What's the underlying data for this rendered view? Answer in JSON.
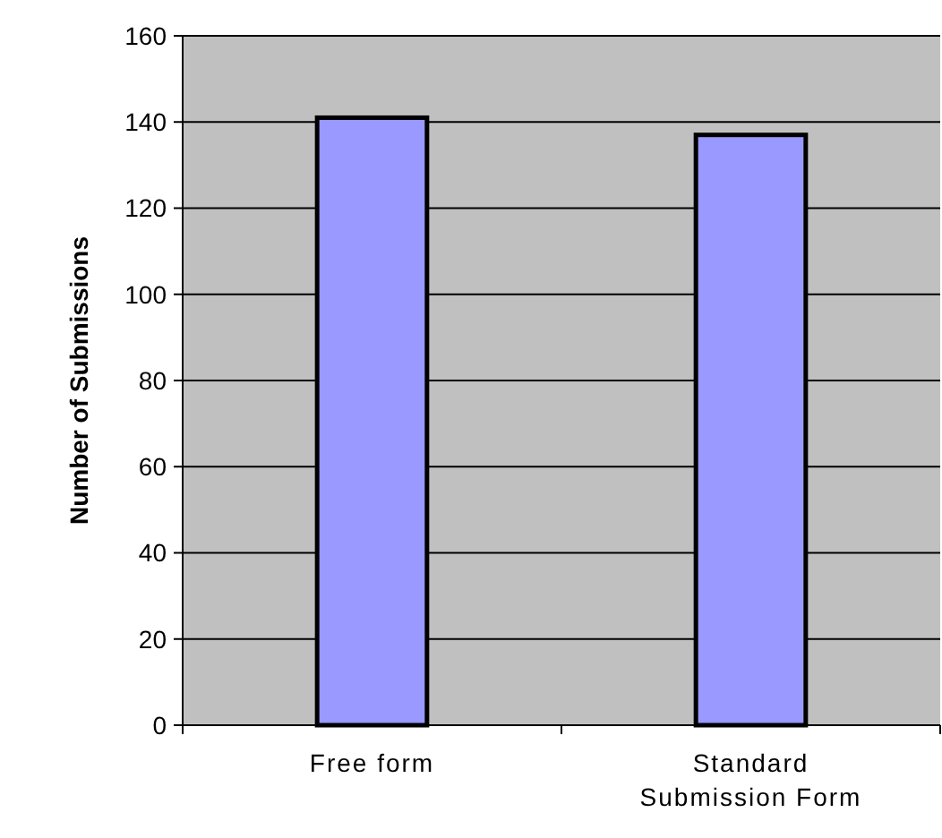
{
  "chart_data": {
    "type": "bar",
    "ylabel": "Number of Submissions",
    "categories": [
      "Free form",
      "Standard Submission Form"
    ],
    "values": [
      141,
      137
    ],
    "color": "#9999ff",
    "ylim": [
      0,
      160
    ],
    "yticks": [
      0,
      20,
      40,
      60,
      80,
      100,
      120,
      140,
      160
    ],
    "grid": "y"
  }
}
